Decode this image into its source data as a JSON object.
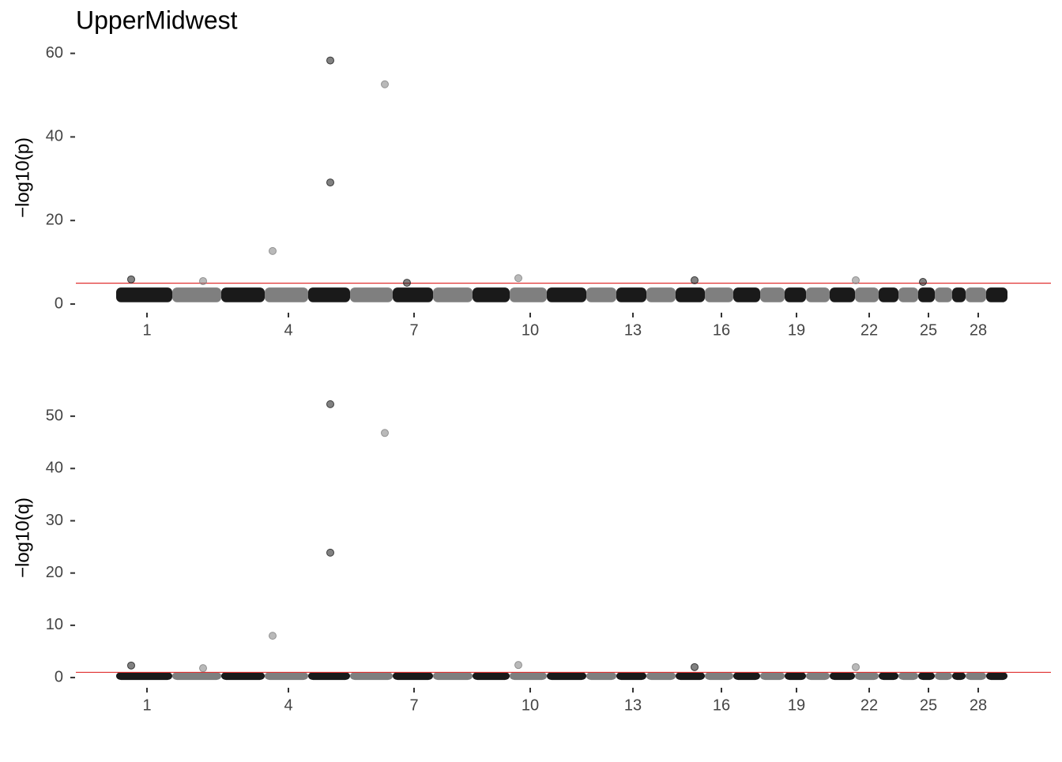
{
  "chart_data": [
    {
      "type": "manhattan",
      "title": "UpperMidwest",
      "ylabel": "−log10(p)",
      "xlim": [
        0,
        1234
      ],
      "ylim": [
        -1.5,
        62
      ],
      "yticks": [
        0,
        20,
        40,
        60
      ],
      "xticks": [
        {
          "value": 90,
          "label": "1"
        },
        {
          "value": 269,
          "label": "4"
        },
        {
          "value": 428,
          "label": "7"
        },
        {
          "value": 575,
          "label": "10"
        },
        {
          "value": 705,
          "label": "13"
        },
        {
          "value": 817,
          "label": "16"
        },
        {
          "value": 912,
          "label": "19"
        },
        {
          "value": 1004,
          "label": "22"
        },
        {
          "value": 1079,
          "label": "25"
        },
        {
          "value": 1142,
          "label": "28"
        }
      ],
      "colors": [
        "#1a1a1a",
        "#7f7f7f"
      ],
      "threshold": 5,
      "threshold_color": "#e03030",
      "blocks": {
        "start": [
          51,
          122,
          184,
          239,
          294,
          347,
          401,
          452,
          502,
          549,
          596,
          646,
          684,
          722,
          759,
          796,
          832,
          866,
          897,
          924,
          954,
          986,
          1016,
          1041,
          1066,
          1087,
          1109,
          1126,
          1152
        ],
        "end": [
          122,
          184,
          239,
          294,
          347,
          401,
          452,
          502,
          549,
          596,
          646,
          684,
          722,
          759,
          796,
          832,
          866,
          897,
          924,
          954,
          986,
          1016,
          1041,
          1066,
          1087,
          1109,
          1126,
          1152,
          1179
        ]
      },
      "band": [
        1,
        3.4
      ],
      "points": {
        "x": [
          322,
          391,
          322,
          249,
          560,
          70,
          783,
          987,
          161,
          1072,
          419
        ],
        "y": [
          58.3,
          52.6,
          29.1,
          12.7,
          6.2,
          5.9,
          5.7,
          5.7,
          5.5,
          5.3,
          5.1
        ]
      }
    },
    {
      "type": "manhattan",
      "ylabel": "−log10(q)",
      "xlim": [
        0,
        1234
      ],
      "ylim": [
        -1.5,
        55
      ],
      "yticks": [
        0,
        10,
        20,
        30,
        40,
        50
      ],
      "xticks": [
        {
          "value": 90,
          "label": "1"
        },
        {
          "value": 269,
          "label": "4"
        },
        {
          "value": 428,
          "label": "7"
        },
        {
          "value": 575,
          "label": "10"
        },
        {
          "value": 705,
          "label": "13"
        },
        {
          "value": 817,
          "label": "16"
        },
        {
          "value": 912,
          "label": "19"
        },
        {
          "value": 1004,
          "label": "22"
        },
        {
          "value": 1079,
          "label": "25"
        },
        {
          "value": 1142,
          "label": "28"
        }
      ],
      "colors": [
        "#1a1a1a",
        "#7f7f7f"
      ],
      "threshold": 1,
      "threshold_color": "#e03030",
      "blocks": {
        "start": [
          51,
          122,
          184,
          239,
          294,
          347,
          401,
          452,
          502,
          549,
          596,
          646,
          684,
          722,
          759,
          796,
          832,
          866,
          897,
          924,
          954,
          986,
          1016,
          1041,
          1066,
          1087,
          1109,
          1126,
          1152
        ],
        "end": [
          122,
          184,
          239,
          294,
          347,
          401,
          452,
          502,
          549,
          596,
          646,
          684,
          722,
          759,
          796,
          832,
          866,
          897,
          924,
          954,
          986,
          1016,
          1041,
          1066,
          1087,
          1109,
          1126,
          1152,
          1179
        ]
      },
      "band": [
        0,
        0.6
      ],
      "points": {
        "x": [
          322,
          391,
          322,
          249,
          560,
          70,
          783,
          987,
          161
        ],
        "y": [
          52.3,
          46.8,
          23.9,
          8.0,
          2.4,
          2.3,
          2.0,
          2.0,
          1.8
        ]
      }
    }
  ]
}
